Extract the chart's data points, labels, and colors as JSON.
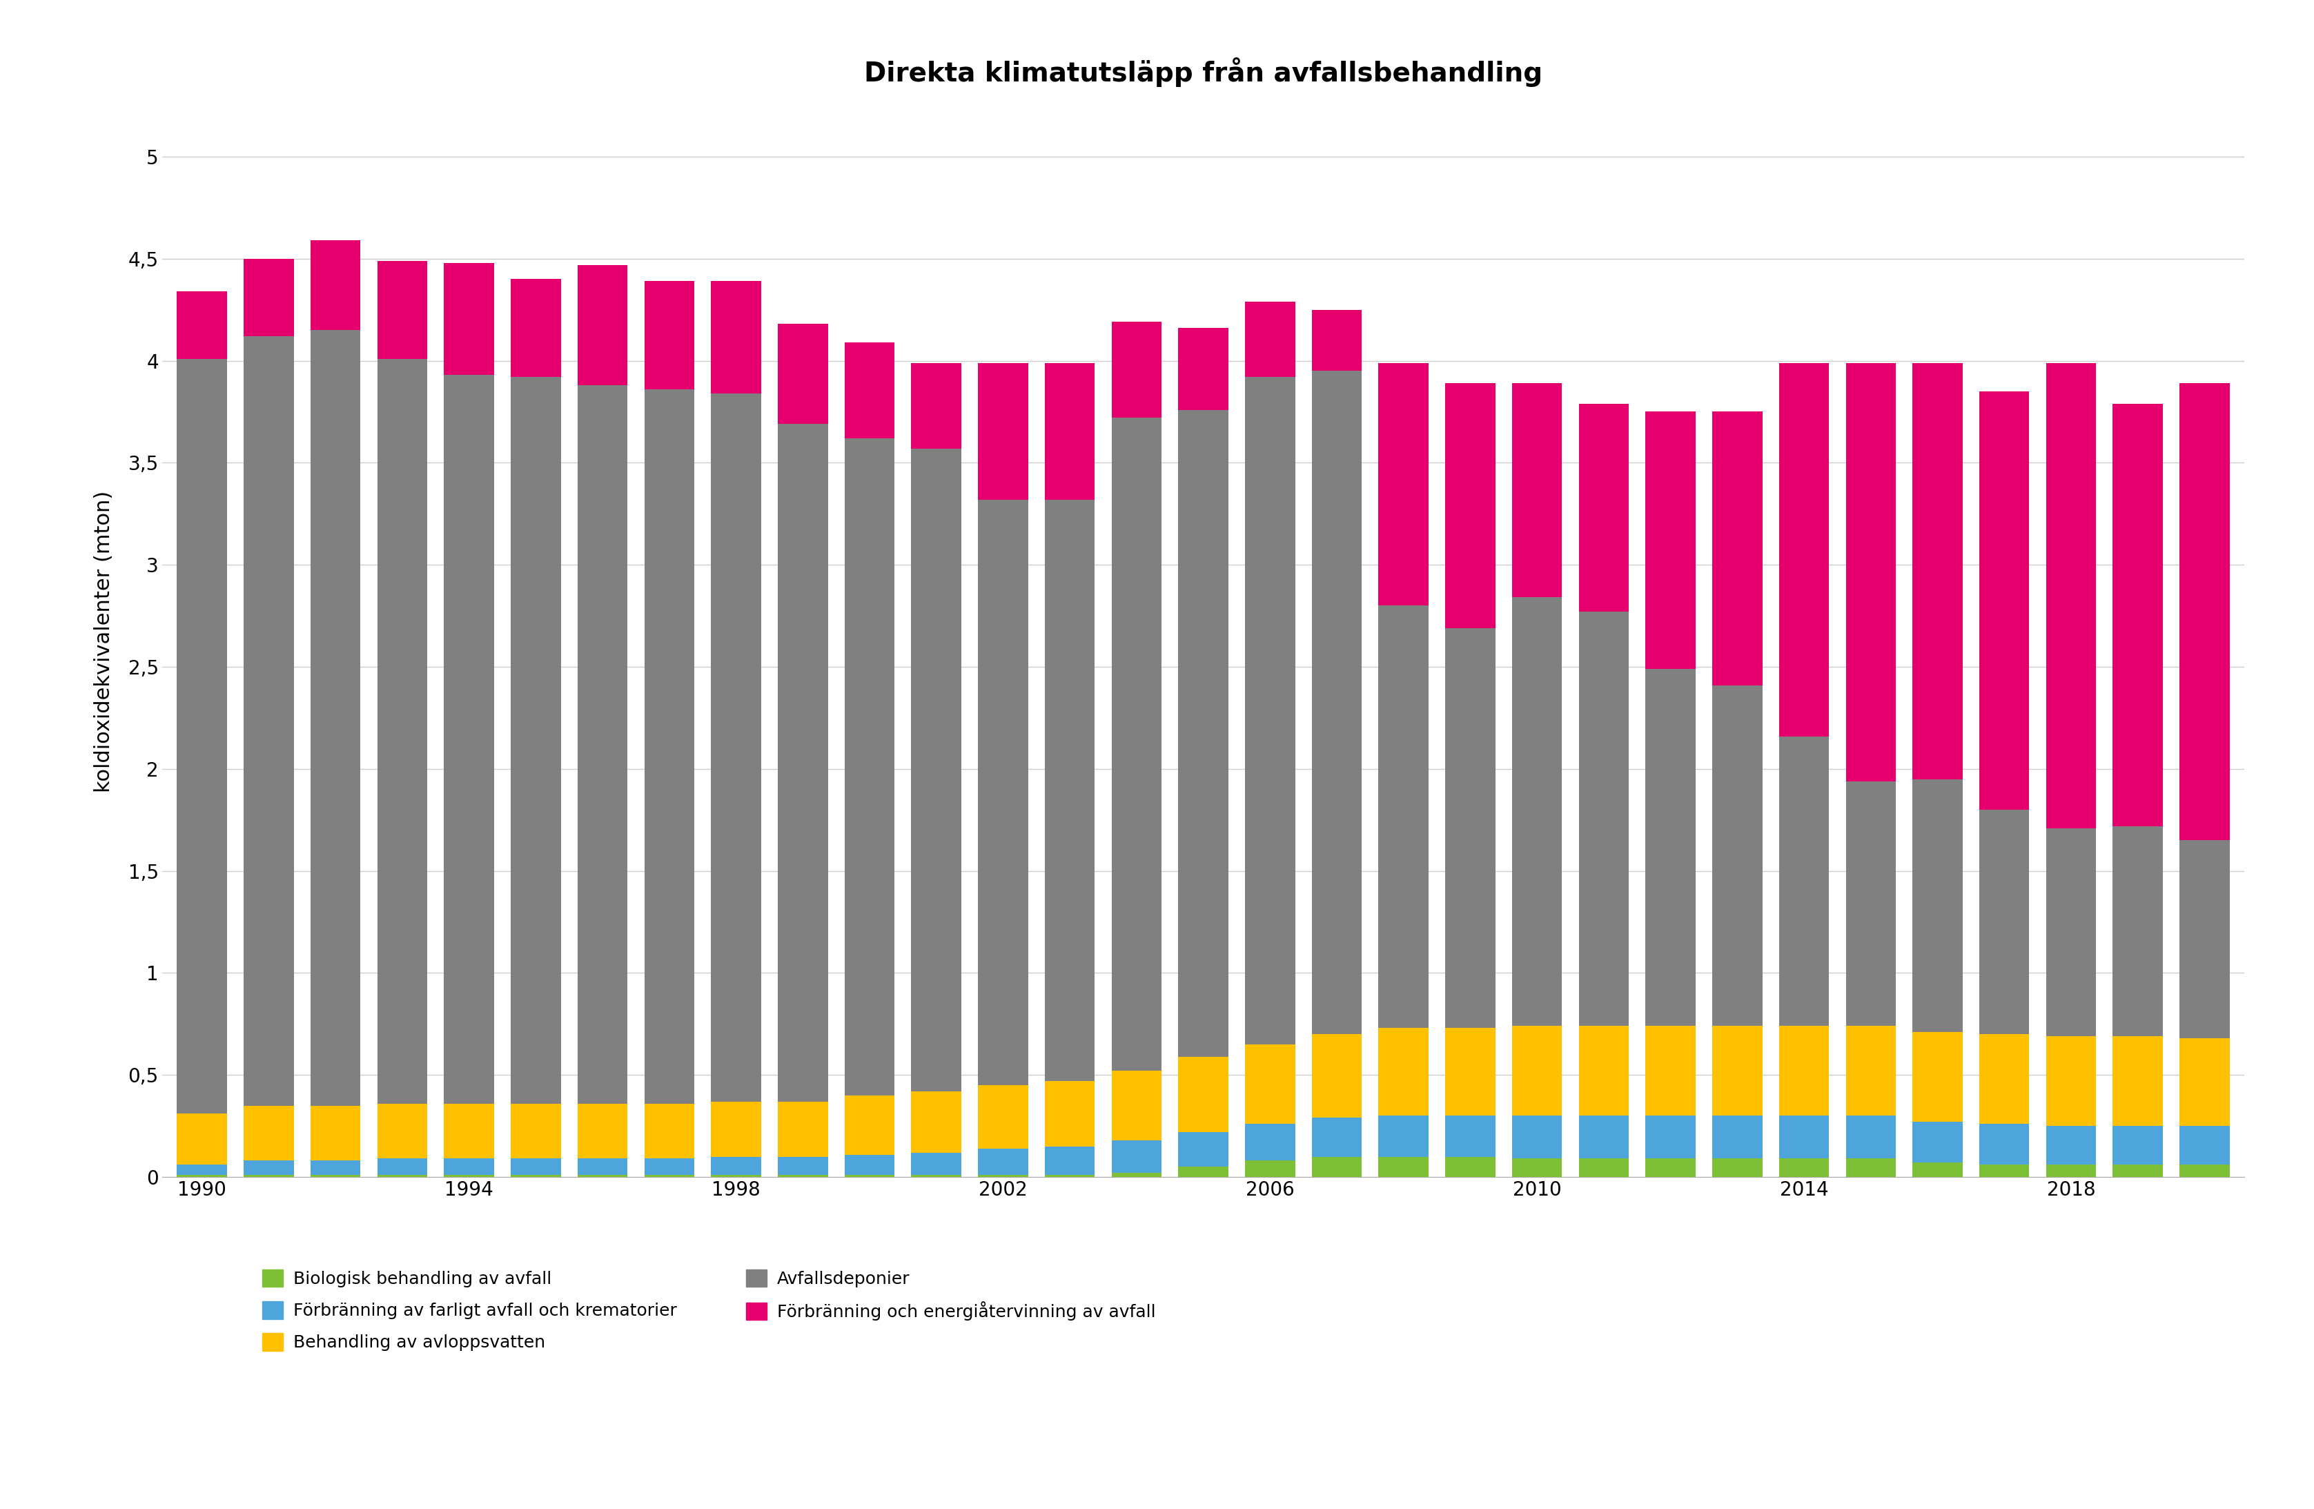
{
  "title": "Direkta klimatutsläpp från avfallsbehandling",
  "ylabel": "koldioxidekvivalenter (mton)",
  "years": [
    1990,
    1991,
    1992,
    1993,
    1994,
    1995,
    1996,
    1997,
    1998,
    1999,
    2000,
    2001,
    2002,
    2003,
    2004,
    2005,
    2006,
    2007,
    2008,
    2009,
    2010,
    2011,
    2012,
    2013,
    2014,
    2015,
    2016,
    2017,
    2018,
    2019,
    2020
  ],
  "biologisk": [
    0.01,
    0.01,
    0.01,
    0.01,
    0.01,
    0.01,
    0.01,
    0.01,
    0.01,
    0.01,
    0.01,
    0.01,
    0.01,
    0.01,
    0.02,
    0.05,
    0.08,
    0.1,
    0.1,
    0.1,
    0.09,
    0.09,
    0.09,
    0.09,
    0.09,
    0.09,
    0.07,
    0.06,
    0.06,
    0.06,
    0.06
  ],
  "forbranningFarligt": [
    0.05,
    0.07,
    0.07,
    0.08,
    0.08,
    0.08,
    0.08,
    0.08,
    0.09,
    0.09,
    0.1,
    0.11,
    0.13,
    0.14,
    0.16,
    0.17,
    0.18,
    0.19,
    0.2,
    0.2,
    0.21,
    0.21,
    0.21,
    0.21,
    0.21,
    0.21,
    0.2,
    0.2,
    0.19,
    0.19,
    0.19
  ],
  "behandlingAvlopp": [
    0.25,
    0.27,
    0.27,
    0.27,
    0.27,
    0.27,
    0.27,
    0.27,
    0.27,
    0.27,
    0.29,
    0.3,
    0.31,
    0.32,
    0.34,
    0.37,
    0.39,
    0.41,
    0.43,
    0.43,
    0.44,
    0.44,
    0.44,
    0.44,
    0.44,
    0.44,
    0.44,
    0.44,
    0.44,
    0.44,
    0.43
  ],
  "avfallsdeponier": [
    3.7,
    3.77,
    3.8,
    3.65,
    3.57,
    3.56,
    3.52,
    3.5,
    3.47,
    3.32,
    3.22,
    3.15,
    2.87,
    2.85,
    3.2,
    3.17,
    3.27,
    3.25,
    2.07,
    1.96,
    2.1,
    2.03,
    1.75,
    1.67,
    1.42,
    1.2,
    1.24,
    1.1,
    1.02,
    1.03,
    0.97
  ],
  "forbranningEnergi": [
    0.33,
    0.38,
    0.44,
    0.48,
    0.55,
    0.48,
    0.59,
    0.53,
    0.55,
    0.49,
    0.47,
    0.42,
    0.67,
    0.67,
    0.47,
    0.4,
    0.37,
    0.3,
    1.19,
    1.2,
    1.05,
    1.02,
    1.26,
    1.34,
    1.83,
    2.05,
    2.04,
    2.05,
    2.28,
    2.07,
    2.24
  ],
  "colors": {
    "biologisk": "#7dc035",
    "forbranningFarligt": "#4ea5db",
    "behandlingAvlopp": "#ffc000",
    "avfallsdeponier": "#808080",
    "forbranningEnergi": "#e5006e"
  },
  "legend_labels": {
    "biologisk": "Biologisk behandling av avfall",
    "forbranningFarligt": "Förbränning av farligt avfall och krematorier",
    "behandlingAvlopp": "Behandling av avloppsvatten",
    "avfallsdeponier": "Avfallsdeponier",
    "forbranningEnergi": "Förbränning och energiåtervinning av avfall"
  },
  "ylim": [
    0,
    5.25
  ],
  "yticks": [
    0,
    0.5,
    1.0,
    1.5,
    2.0,
    2.5,
    3.0,
    3.5,
    4.0,
    4.5,
    5.0
  ],
  "ytick_labels": [
    "0",
    "0,5",
    "1",
    "1,5",
    "2",
    "2,5",
    "3",
    "3,5",
    "4",
    "4,5",
    "5"
  ],
  "xtick_years": [
    1990,
    1994,
    1998,
    2002,
    2006,
    2010,
    2014,
    2018
  ],
  "background_color": "#ffffff",
  "grid_color": "#cccccc",
  "title_fontsize": 28,
  "axis_label_fontsize": 22,
  "tick_fontsize": 20,
  "legend_fontsize": 18
}
